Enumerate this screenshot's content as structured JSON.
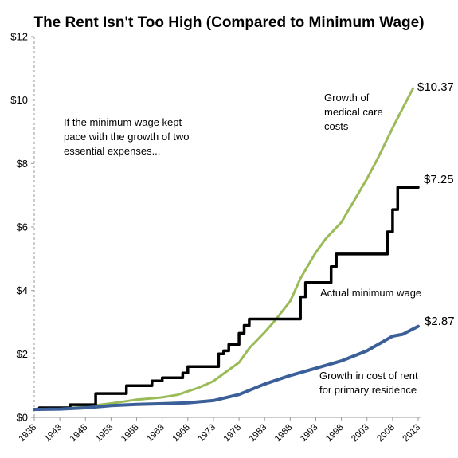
{
  "chart_data": {
    "type": "line",
    "title": "The Rent Isn't Too High (Compared to Minimum Wage)",
    "xlabel": "",
    "ylabel": "",
    "xlim": [
      1938,
      2013
    ],
    "ylim": [
      0,
      12
    ],
    "x_ticks": [
      "1938",
      "1943",
      "1948",
      "1953",
      "1958",
      "1963",
      "1968",
      "1973",
      "1978",
      "1983",
      "1988",
      "1993",
      "1998",
      "2003",
      "2008",
      "2013"
    ],
    "y_ticks": [
      "$0",
      "$2",
      "$4",
      "$6",
      "$8",
      "$10",
      "$12"
    ],
    "grid": false,
    "annotations": {
      "intro_line1": "If the minimum wage kept",
      "intro_line2": "pace with the growth of two",
      "intro_line3": "essential expenses...",
      "medical_line1": "Growth of",
      "medical_line2": "medical care",
      "medical_line3": "costs",
      "minwage_label": "Actual minimum wage",
      "rent_line1": "Growth in cost of rent",
      "rent_line2": "for primary residence"
    },
    "end_labels": {
      "medical": "$10.37",
      "minwage": "$7.25",
      "rent": "$2.87"
    },
    "series": [
      {
        "key": "medical",
        "color": "#9bbb59",
        "x": [
          1938,
          1940,
          1943,
          1946,
          1948,
          1950,
          1953,
          1956,
          1958,
          1961,
          1963,
          1966,
          1968,
          1970,
          1973,
          1975,
          1978,
          1980,
          1983,
          1985,
          1988,
          1990,
          1993,
          1995,
          1998,
          2000,
          2003,
          2005,
          2008,
          2010,
          2012
        ],
        "values": [
          0.25,
          0.26,
          0.28,
          0.31,
          0.34,
          0.38,
          0.44,
          0.51,
          0.56,
          0.6,
          0.63,
          0.71,
          0.82,
          0.93,
          1.14,
          1.38,
          1.73,
          2.18,
          2.68,
          3.05,
          3.66,
          4.38,
          5.2,
          5.64,
          6.15,
          6.7,
          7.52,
          8.13,
          9.12,
          9.75,
          10.37
        ]
      },
      {
        "key": "minwage",
        "color": "#000000",
        "step": true,
        "x": [
          1938,
          1939,
          1945,
          1950,
          1956,
          1961,
          1963,
          1967,
          1968,
          1974,
          1975,
          1976,
          1978,
          1979,
          1980,
          1990,
          1991,
          1996,
          1997,
          2007,
          2008,
          2009,
          2013
        ],
        "values": [
          0.25,
          0.3,
          0.4,
          0.75,
          1.0,
          1.15,
          1.25,
          1.4,
          1.6,
          2.0,
          2.1,
          2.3,
          2.65,
          2.9,
          3.1,
          3.8,
          4.25,
          4.75,
          5.15,
          5.85,
          6.55,
          7.25,
          7.25
        ]
      },
      {
        "key": "rent",
        "color": "#3b5f98",
        "x": [
          1938,
          1943,
          1948,
          1953,
          1958,
          1963,
          1968,
          1973,
          1978,
          1983,
          1988,
          1993,
          1998,
          2003,
          2008,
          2010,
          2013
        ],
        "values": [
          0.25,
          0.26,
          0.3,
          0.37,
          0.41,
          0.43,
          0.46,
          0.53,
          0.72,
          1.05,
          1.32,
          1.55,
          1.78,
          2.1,
          2.56,
          2.62,
          2.87
        ]
      }
    ]
  }
}
